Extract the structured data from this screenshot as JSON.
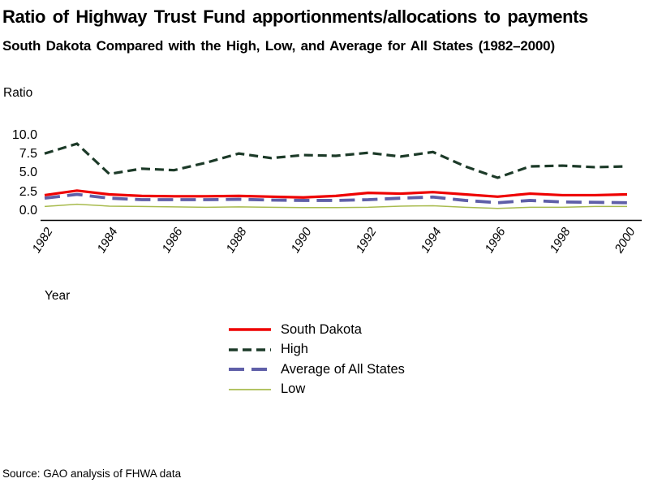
{
  "title": "Ratio of Highway Trust Fund apportionments/allocations to payments",
  "subtitle": "South Dakota Compared with the High, Low, and Average for All States (1982–2000)",
  "source": "Source: GAO analysis of FHWA data",
  "y_axis": {
    "label": "Ratio",
    "ticks": [
      10.0,
      7.5,
      5.0,
      2.5,
      0.0
    ],
    "tick_labels": [
      "10.0",
      "7.5",
      "5.0",
      "2.5",
      "0.0"
    ]
  },
  "x_axis": {
    "label": "Year",
    "ticks": [
      1982,
      1984,
      1986,
      1988,
      1990,
      1992,
      1994,
      1996,
      1998,
      2000
    ]
  },
  "colors": {
    "south_dakota": "#ee0000",
    "high": "#1c3a28",
    "average": "#5f5fa8",
    "low": "#a8bb4e",
    "axis": "#000000"
  },
  "chart_data": {
    "type": "line",
    "title": "Ratio of Highway Trust Fund apportionments/allocations to payments",
    "xlabel": "Year",
    "ylabel": "Ratio",
    "xlim": [
      1982,
      2000
    ],
    "ylim": [
      0,
      10
    ],
    "grid": false,
    "legend_position": "bottom-center",
    "x": [
      1982,
      1983,
      1984,
      1985,
      1986,
      1987,
      1988,
      1989,
      1990,
      1991,
      1992,
      1993,
      1994,
      1995,
      1996,
      1997,
      1998,
      1999,
      2000
    ],
    "series": [
      {
        "name": "South Dakota",
        "color": "#ee0000",
        "style": "solid",
        "dash": "",
        "width": 3.2,
        "values": [
          2.1,
          2.7,
          2.2,
          2.0,
          1.95,
          1.95,
          2.0,
          1.9,
          1.8,
          2.0,
          2.4,
          2.3,
          2.5,
          2.2,
          1.9,
          2.3,
          2.1,
          2.1,
          2.2
        ]
      },
      {
        "name": "High",
        "color": "#1c3a28",
        "style": "dashed",
        "dash": "11 6",
        "width": 3.2,
        "values": [
          7.6,
          8.9,
          4.9,
          5.6,
          5.4,
          6.4,
          7.6,
          7.0,
          7.4,
          7.3,
          7.7,
          7.2,
          7.8,
          5.9,
          4.4,
          5.9,
          6.0,
          5.8,
          5.9
        ]
      },
      {
        "name": "Average of All States",
        "color": "#5f5fa8",
        "style": "long-dash",
        "dash": "19 9",
        "width": 3.8,
        "values": [
          1.7,
          2.2,
          1.7,
          1.5,
          1.5,
          1.5,
          1.55,
          1.45,
          1.4,
          1.4,
          1.5,
          1.7,
          1.85,
          1.4,
          1.1,
          1.4,
          1.2,
          1.15,
          1.1
        ]
      },
      {
        "name": "Low",
        "color": "#a8bb4e",
        "style": "solid",
        "dash": "",
        "width": 1.5,
        "values": [
          0.6,
          0.9,
          0.65,
          0.6,
          0.55,
          0.5,
          0.55,
          0.5,
          0.45,
          0.45,
          0.5,
          0.65,
          0.7,
          0.5,
          0.35,
          0.5,
          0.5,
          0.6,
          0.6
        ]
      }
    ]
  },
  "legend": {
    "entries": [
      "South Dakota",
      "High",
      "Average of All States",
      "Low"
    ]
  }
}
